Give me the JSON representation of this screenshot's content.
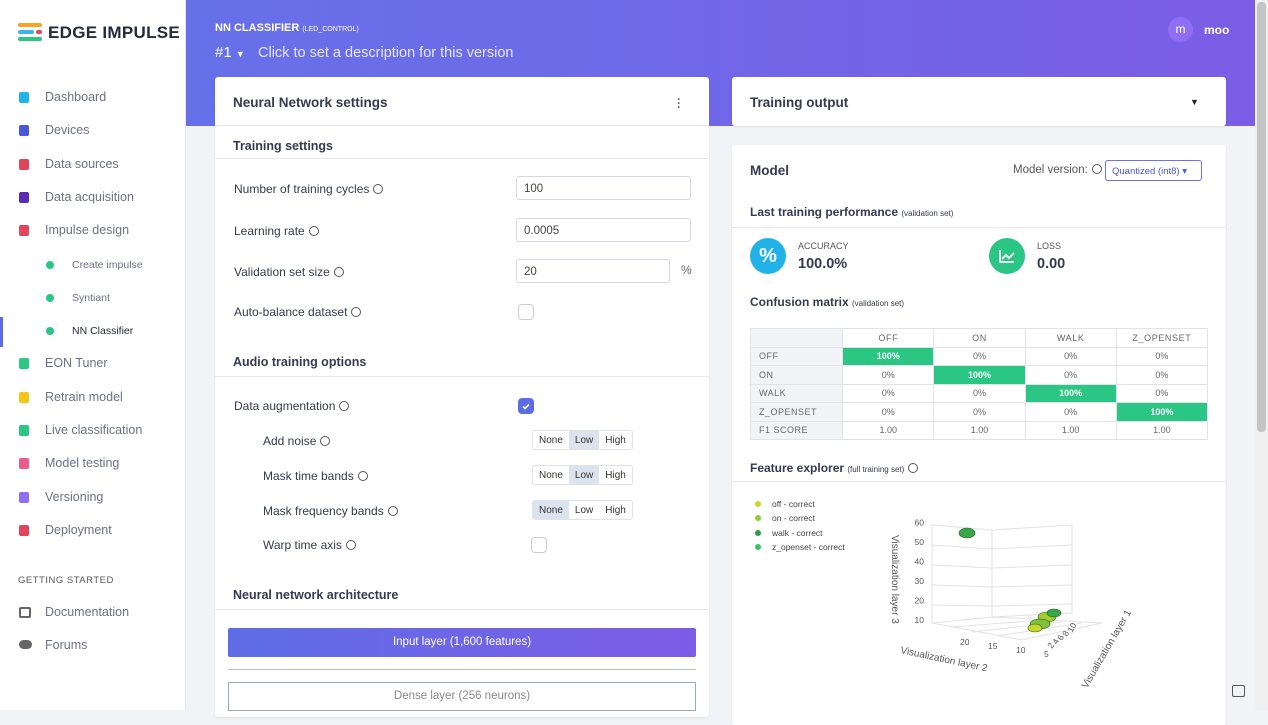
{
  "sidebar": {
    "brand": "EDGE IMPULSE",
    "nav": [
      {
        "label": "Dashboard",
        "sub": false
      },
      {
        "label": "Devices",
        "sub": false
      },
      {
        "label": "Data sources",
        "sub": false
      },
      {
        "label": "Data acquisition",
        "sub": false
      },
      {
        "label": "Impulse design",
        "sub": false
      },
      {
        "label": "Create impulse",
        "sub": true
      },
      {
        "label": "Syntiant",
        "sub": true
      },
      {
        "label": "NN Classifier",
        "sub": true,
        "active": true
      },
      {
        "label": "EON Tuner",
        "sub": false
      },
      {
        "label": "Retrain model",
        "sub": false
      },
      {
        "label": "Live classification",
        "sub": false
      },
      {
        "label": "Model testing",
        "sub": false
      },
      {
        "label": "Versioning",
        "sub": false
      },
      {
        "label": "Deployment",
        "sub": false
      }
    ],
    "section": "GETTING STARTED",
    "links": [
      "Documentation",
      "Forums"
    ]
  },
  "header": {
    "title": "NN CLASSIFIER",
    "project": "(LED_CONTROL)",
    "version": "#1",
    "description": "Click to set a description for this version",
    "user_initial": "m",
    "user_name": "moo"
  },
  "nn_settings": {
    "title": "Neural Network settings",
    "training_heading": "Training settings",
    "fields": [
      {
        "label": "Number of training cycles",
        "value": "100"
      },
      {
        "label": "Learning rate",
        "value": "0.0005"
      },
      {
        "label": "Validation set size",
        "value": "20",
        "suffix": "%"
      }
    ],
    "auto_balance": "Auto-balance dataset",
    "audio_heading": "Audio training options",
    "augmentation": "Data augmentation",
    "options": [
      {
        "label": "Add noise",
        "selected": 1
      },
      {
        "label": "Mask time bands",
        "selected": 1
      },
      {
        "label": "Mask frequency bands",
        "selected": 0
      }
    ],
    "choices": [
      "None",
      "Low",
      "High"
    ],
    "warp": "Warp time axis",
    "architecture_heading": "Neural network architecture",
    "input_layer": "Input layer (1,600 features)",
    "dense_layer": "Dense layer (256 neurons)"
  },
  "training_output": {
    "title": "Training output"
  },
  "model": {
    "title": "Model",
    "version_label": "Model version:",
    "version_select": "Quantized (int8)",
    "performance_heading": "Last training performance",
    "performance_note": "(validation set)",
    "accuracy_label": "ACCURACY",
    "accuracy": "100.0%",
    "loss_label": "LOSS",
    "loss": "0.00",
    "confusion_heading": "Confusion matrix",
    "confusion_note": "(validation set)",
    "columns": [
      "OFF",
      "ON",
      "WALK",
      "Z_OPENSET"
    ],
    "rows": [
      {
        "label": "OFF",
        "cells": [
          "100%",
          "0%",
          "0%",
          "0%"
        ]
      },
      {
        "label": "ON",
        "cells": [
          "0%",
          "100%",
          "0%",
          "0%"
        ]
      },
      {
        "label": "WALK",
        "cells": [
          "0%",
          "0%",
          "100%",
          "0%"
        ]
      },
      {
        "label": "Z_OPENSET",
        "cells": [
          "0%",
          "0%",
          "0%",
          "100%"
        ]
      },
      {
        "label": "F1 SCORE",
        "cells": [
          "1.00",
          "1.00",
          "1.00",
          "1.00"
        ]
      }
    ],
    "feature_heading": "Feature explorer",
    "feature_note": "(full training set)",
    "legend": [
      {
        "label": "off - correct",
        "color": "#c8d62a"
      },
      {
        "label": "on - correct",
        "color": "#8fcf3a"
      },
      {
        "label": "walk - correct",
        "color": "#2f9e44"
      },
      {
        "label": "z_openset - correct",
        "color": "#37c466"
      }
    ],
    "axis_z": "Visualization layer 3",
    "axis_y": "Visualization layer 2",
    "axis_x": "Visualization layer 1",
    "zticks": [
      "10",
      "20",
      "30",
      "40",
      "50",
      "60"
    ],
    "yticks": [
      "20",
      "15",
      "10",
      "5"
    ],
    "xticks": [
      "10",
      "8",
      "6",
      "4",
      "2"
    ]
  }
}
